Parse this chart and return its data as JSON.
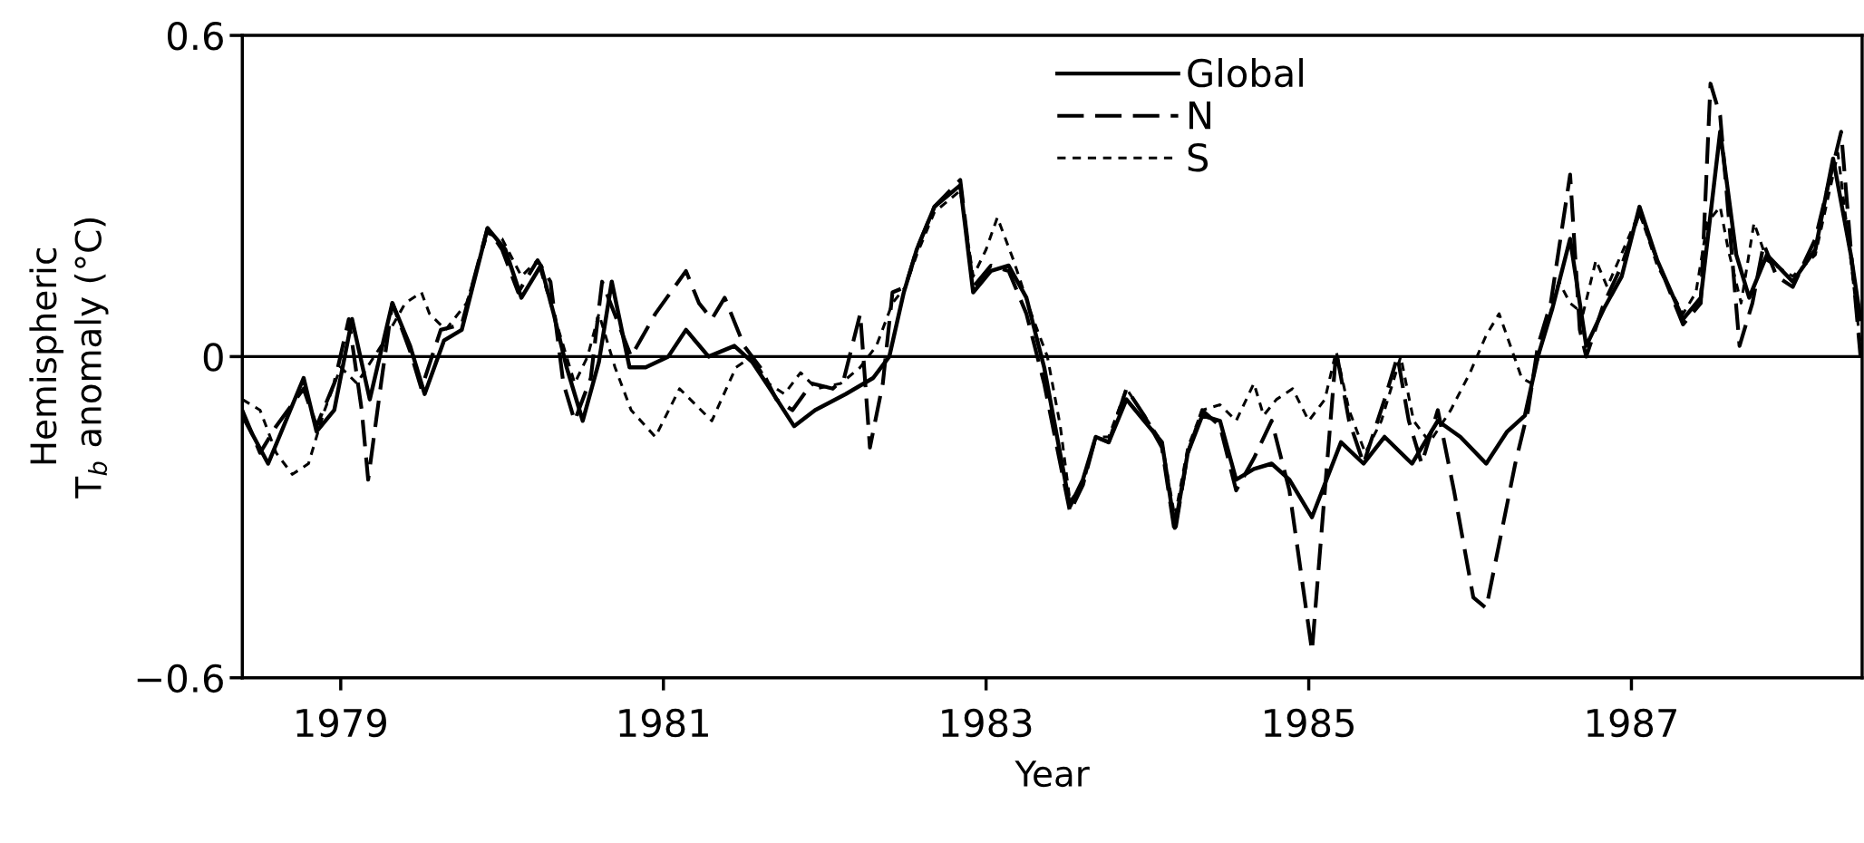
{
  "chart_data": {
    "type": "line",
    "xlabel": "Year",
    "ylabel": "Hemispheric\nT$_{b}$ anomaly (°C)",
    "xlim": [
      1978.89,
      1988.93
    ],
    "ylim": [
      -0.6,
      0.6
    ],
    "xticks": [
      {
        "value": 1979.5,
        "label": "1979"
      },
      {
        "value": 1981.5,
        "label": "1981"
      },
      {
        "value": 1983.5,
        "label": "1983"
      },
      {
        "value": 1985.5,
        "label": "1985"
      },
      {
        "value": 1987.5,
        "label": "1987"
      }
    ],
    "yticks": [
      0.6,
      0,
      {
        "value": -0.6,
        "label": "−0.6"
      }
    ],
    "ref_lines": [
      {
        "axis": "y",
        "value": 0,
        "color": "#000000",
        "line_style": "solid"
      }
    ],
    "legend": "top",
    "grid": false,
    "marker": "none",
    "series": [
      {
        "name": "Global",
        "color": "#000000",
        "line_style": "solid",
        "x": [
          1978.89,
          1979.05,
          1979.27,
          1979.35,
          1979.46,
          1979.57,
          1979.68,
          1979.82,
          1979.93,
          1980.02,
          1980.14,
          1980.25,
          1980.41,
          1980.52,
          1980.62,
          1980.74,
          1980.82,
          1980.9,
          1981.0,
          1981.1,
          1981.18,
          1981.29,
          1981.39,
          1981.53,
          1981.64,
          1981.78,
          1981.94,
          1982.05,
          1982.16,
          1982.31,
          1982.44,
          1982.63,
          1982.8,
          1982.9,
          1982.99,
          1983.07,
          1983.18,
          1983.34,
          1983.42,
          1983.53,
          1983.64,
          1983.75,
          1983.86,
          1983.94,
          1984.02,
          1984.1,
          1984.18,
          1984.26,
          1984.37,
          1984.48,
          1984.59,
          1984.67,
          1984.75,
          1984.84,
          1984.95,
          1985.05,
          1985.16,
          1985.27,
          1985.38,
          1985.52,
          1985.7,
          1985.84,
          1985.97,
          1986.14,
          1986.3,
          1986.44,
          1986.6,
          1986.73,
          1986.84,
          1986.92,
          1987.01,
          1987.12,
          1987.22,
          1987.33,
          1987.44,
          1987.55,
          1987.66,
          1987.82,
          1987.93,
          1988.05,
          1988.15,
          1988.23,
          1988.34,
          1988.5,
          1988.64,
          1988.75,
          1988.86,
          1988.92
        ],
        "values": [
          -0.11,
          -0.2,
          -0.04,
          -0.14,
          -0.1,
          0.07,
          -0.08,
          0.1,
          0.02,
          -0.07,
          0.03,
          0.05,
          0.24,
          0.2,
          0.11,
          0.17,
          0.08,
          -0.02,
          -0.12,
          -0.01,
          0.14,
          -0.02,
          -0.02,
          0.0,
          0.05,
          0.0,
          0.02,
          -0.01,
          -0.06,
          -0.13,
          -0.1,
          -0.07,
          -0.04,
          0.0,
          0.12,
          0.2,
          0.28,
          0.32,
          0.12,
          0.16,
          0.17,
          0.11,
          -0.02,
          -0.15,
          -0.28,
          -0.23,
          -0.15,
          -0.16,
          -0.08,
          -0.12,
          -0.16,
          -0.32,
          -0.18,
          -0.11,
          -0.12,
          -0.23,
          -0.21,
          -0.2,
          -0.23,
          -0.3,
          -0.16,
          -0.2,
          -0.15,
          -0.2,
          -0.12,
          -0.15,
          -0.2,
          -0.14,
          -0.11,
          0.0,
          0.09,
          0.22,
          0.02,
          0.09,
          0.15,
          0.28,
          0.18,
          0.07,
          0.11,
          0.42,
          0.19,
          0.11,
          0.19,
          0.14,
          0.2,
          0.37,
          0.19,
          0.07
        ]
      },
      {
        "name": "N",
        "color": "#000000",
        "line_style": "dashed",
        "x": [
          1978.89,
          1979.0,
          1979.1,
          1979.27,
          1979.35,
          1979.46,
          1979.55,
          1979.63,
          1979.67,
          1979.75,
          1979.82,
          1979.93,
          1980.0,
          1980.12,
          1980.25,
          1980.41,
          1980.5,
          1980.6,
          1980.72,
          1980.8,
          1980.88,
          1980.95,
          1981.05,
          1981.12,
          1981.3,
          1981.45,
          1981.64,
          1981.72,
          1981.8,
          1981.88,
          1982.0,
          1982.1,
          1982.2,
          1982.3,
          1982.42,
          1982.55,
          1982.62,
          1982.72,
          1982.78,
          1982.86,
          1982.92,
          1983.0,
          1983.07,
          1983.18,
          1983.34,
          1983.42,
          1983.53,
          1983.64,
          1983.75,
          1983.86,
          1983.94,
          1984.02,
          1984.1,
          1984.18,
          1984.26,
          1984.37,
          1984.48,
          1984.59,
          1984.67,
          1984.75,
          1984.84,
          1984.95,
          1985.05,
          1985.16,
          1985.27,
          1985.38,
          1985.45,
          1985.52,
          1985.6,
          1985.67,
          1985.75,
          1985.84,
          1985.97,
          1986.05,
          1986.12,
          1986.2,
          1986.3,
          1986.4,
          1986.52,
          1986.6,
          1986.68,
          1986.78,
          1986.86,
          1986.92,
          1987.0,
          1987.08,
          1987.12,
          1987.18,
          1987.22,
          1987.33,
          1987.44,
          1987.55,
          1987.66,
          1987.82,
          1987.93,
          1987.99,
          1988.05,
          1988.12,
          1988.17,
          1988.25,
          1988.32,
          1988.4,
          1988.5,
          1988.64,
          1988.8,
          1988.86,
          1988.92
        ],
        "values": [
          -0.1,
          -0.18,
          -0.13,
          -0.06,
          -0.13,
          -0.05,
          0.07,
          -0.1,
          -0.23,
          -0.05,
          0.1,
          0.01,
          -0.06,
          0.05,
          0.06,
          0.24,
          0.2,
          0.12,
          0.18,
          0.14,
          -0.05,
          -0.12,
          -0.04,
          0.14,
          0.0,
          0.08,
          0.16,
          0.1,
          0.07,
          0.11,
          0.02,
          -0.02,
          -0.08,
          -0.1,
          -0.05,
          -0.06,
          -0.04,
          0.08,
          -0.17,
          -0.05,
          0.12,
          0.13,
          0.2,
          0.28,
          0.33,
          0.13,
          0.17,
          0.16,
          0.08,
          -0.05,
          -0.17,
          -0.29,
          -0.24,
          -0.15,
          -0.16,
          -0.06,
          -0.11,
          -0.17,
          -0.33,
          -0.18,
          -0.1,
          -0.13,
          -0.25,
          -0.19,
          -0.12,
          -0.25,
          -0.4,
          -0.55,
          -0.25,
          0.01,
          -0.12,
          -0.2,
          -0.08,
          0.0,
          -0.12,
          -0.2,
          -0.1,
          -0.25,
          -0.45,
          -0.47,
          -0.35,
          -0.2,
          -0.1,
          0.02,
          0.1,
          0.26,
          0.34,
          0.05,
          0.0,
          0.1,
          0.17,
          0.27,
          0.18,
          0.06,
          0.1,
          0.51,
          0.45,
          0.2,
          0.02,
          0.1,
          0.21,
          0.15,
          0.13,
          0.22,
          0.42,
          0.2,
          0.0
        ]
      },
      {
        "name": "S",
        "color": "#000000",
        "line_style": "dotted",
        "x": [
          1978.89,
          1979.0,
          1979.1,
          1979.2,
          1979.3,
          1979.4,
          1979.5,
          1979.6,
          1979.75,
          1979.9,
          1980.0,
          1980.05,
          1980.15,
          1980.28,
          1980.41,
          1980.5,
          1980.62,
          1980.72,
          1980.85,
          1980.95,
          1981.03,
          1981.1,
          1981.2,
          1981.3,
          1981.45,
          1981.6,
          1981.8,
          1981.95,
          1982.05,
          1982.15,
          1982.25,
          1982.35,
          1982.45,
          1982.6,
          1982.72,
          1982.82,
          1982.92,
          1983.0,
          1983.07,
          1983.18,
          1983.34,
          1983.42,
          1983.5,
          1983.57,
          1983.67,
          1983.78,
          1983.88,
          1983.96,
          1984.02,
          1984.1,
          1984.18,
          1984.26,
          1984.37,
          1984.48,
          1984.59,
          1984.67,
          1984.75,
          1984.84,
          1984.95,
          1985.05,
          1985.16,
          1985.22,
          1985.3,
          1985.4,
          1985.5,
          1985.6,
          1985.67,
          1985.75,
          1985.85,
          1985.95,
          1986.07,
          1986.15,
          1986.25,
          1986.38,
          1986.5,
          1986.6,
          1986.68,
          1986.75,
          1986.82,
          1986.88,
          1986.95,
          1987.05,
          1987.12,
          1987.2,
          1987.28,
          1987.35,
          1987.45,
          1987.55,
          1987.66,
          1987.82,
          1987.9,
          1987.97,
          1988.05,
          1988.1,
          1988.18,
          1988.26,
          1988.34,
          1988.5,
          1988.64,
          1988.78,
          1988.86,
          1988.92
        ],
        "values": [
          -0.08,
          -0.1,
          -0.18,
          -0.22,
          -0.2,
          -0.1,
          -0.02,
          -0.05,
          0.02,
          0.1,
          0.12,
          0.08,
          0.05,
          0.1,
          0.23,
          0.22,
          0.15,
          0.18,
          0.05,
          -0.05,
          0.0,
          0.08,
          -0.02,
          -0.1,
          -0.15,
          -0.06,
          -0.12,
          -0.02,
          0.0,
          -0.05,
          -0.07,
          -0.03,
          -0.06,
          -0.05,
          -0.02,
          0.02,
          0.1,
          0.13,
          0.19,
          0.27,
          0.31,
          0.15,
          0.2,
          0.26,
          0.18,
          0.08,
          0.0,
          -0.13,
          -0.27,
          -0.24,
          -0.15,
          -0.15,
          -0.06,
          -0.11,
          -0.16,
          -0.3,
          -0.17,
          -0.1,
          -0.09,
          -0.12,
          -0.05,
          -0.11,
          -0.08,
          -0.06,
          -0.12,
          -0.08,
          0.01,
          -0.1,
          -0.18,
          -0.12,
          0.0,
          -0.12,
          -0.16,
          -0.1,
          -0.03,
          0.04,
          0.08,
          0.02,
          -0.04,
          -0.05,
          0.03,
          0.14,
          0.1,
          0.08,
          0.18,
          0.13,
          0.2,
          0.27,
          0.17,
          0.08,
          0.12,
          0.25,
          0.28,
          0.2,
          0.1,
          0.25,
          0.18,
          0.15,
          0.19,
          0.38,
          0.18,
          0.02
        ]
      }
    ]
  }
}
